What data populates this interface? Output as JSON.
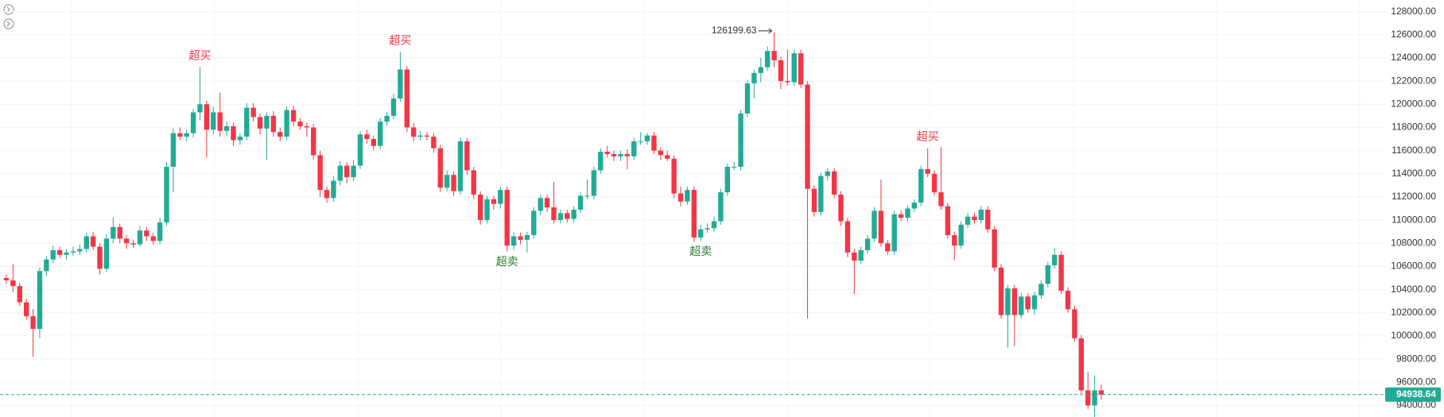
{
  "chart_data": {
    "type": "candlestick",
    "up_color": "#22ab94",
    "down_color": "#f23645",
    "ylim": [
      93000,
      129000
    ],
    "yticks": [
      {
        "value": 94000,
        "label": "94000.00"
      },
      {
        "value": 96000,
        "label": "96000.00"
      },
      {
        "value": 98000,
        "label": "98000.00"
      },
      {
        "value": 100000,
        "label": "100000.00"
      },
      {
        "value": 102000,
        "label": "102000.00"
      },
      {
        "value": 104000,
        "label": "104000.00"
      },
      {
        "value": 106000,
        "label": "106000.00"
      },
      {
        "value": 108000,
        "label": "108000.00"
      },
      {
        "value": 110000,
        "label": "110000.00"
      },
      {
        "value": 112000,
        "label": "112000.00"
      },
      {
        "value": 114000,
        "label": "114000.00"
      },
      {
        "value": 116000,
        "label": "116000.00"
      },
      {
        "value": 118000,
        "label": "118000.00"
      },
      {
        "value": 120000,
        "label": "120000.00"
      },
      {
        "value": 122000,
        "label": "122000.00"
      },
      {
        "value": 124000,
        "label": "124000.00"
      },
      {
        "value": 126000,
        "label": "126000.00"
      },
      {
        "value": 128000,
        "label": "128000.00"
      }
    ],
    "grid": true,
    "annotations": [
      {
        "text": "超买",
        "candle": 29,
        "position": "above",
        "color": "#f23645"
      },
      {
        "text": "超买",
        "candle": 59,
        "position": "above",
        "color": "#f23645"
      },
      {
        "text": "超买",
        "candle": 138,
        "position": "above",
        "color": "#f23645"
      },
      {
        "text": "超卖",
        "candle": 75,
        "position": "below",
        "color": "#2e7d32"
      },
      {
        "text": "超卖",
        "candle": 104,
        "position": "below",
        "color": "#2e7d32"
      }
    ],
    "candles": [
      [
        105000,
        105300,
        104500,
        104800
      ],
      [
        104800,
        106200,
        103800,
        104300
      ],
      [
        104300,
        104600,
        102600,
        102900
      ],
      [
        102900,
        103200,
        101400,
        101700
      ],
      [
        101700,
        102300,
        98200,
        100600
      ],
      [
        100600,
        105900,
        99800,
        105600
      ],
      [
        105600,
        106900,
        105200,
        106600
      ],
      [
        106600,
        107800,
        106300,
        107400
      ],
      [
        107400,
        107700,
        106700,
        107000
      ],
      [
        107000,
        107500,
        106600,
        107200
      ],
      [
        107200,
        107700,
        106900,
        107300
      ],
      [
        107300,
        107900,
        107000,
        107500
      ],
      [
        107500,
        108900,
        107200,
        108600
      ],
      [
        108600,
        109000,
        107400,
        107700
      ],
      [
        107700,
        108000,
        105300,
        105800
      ],
      [
        105800,
        108800,
        105500,
        108400
      ],
      [
        108400,
        110200,
        108000,
        109400
      ],
      [
        109400,
        109700,
        108000,
        108400
      ],
      [
        108400,
        108700,
        107500,
        108000
      ],
      [
        108000,
        108300,
        107600,
        107900
      ],
      [
        107900,
        109500,
        107700,
        109100
      ],
      [
        109100,
        109400,
        108200,
        108600
      ],
      [
        108600,
        108900,
        107900,
        108200
      ],
      [
        108200,
        110200,
        107900,
        109800
      ],
      [
        109800,
        115000,
        109500,
        114600
      ],
      [
        114600,
        117900,
        112400,
        117500
      ],
      [
        117500,
        118000,
        116900,
        117200
      ],
      [
        117200,
        117800,
        116800,
        117500
      ],
      [
        117500,
        119600,
        117100,
        119300
      ],
      [
        119300,
        123200,
        118600,
        120000
      ],
      [
        120000,
        120300,
        115400,
        117800
      ],
      [
        117800,
        119800,
        117400,
        119300
      ],
      [
        119300,
        121000,
        117200,
        117700
      ],
      [
        117700,
        118500,
        117300,
        118100
      ],
      [
        118100,
        118400,
        116400,
        116900
      ],
      [
        116900,
        117500,
        116500,
        117200
      ],
      [
        117200,
        120100,
        116900,
        119700
      ],
      [
        119700,
        120100,
        118500,
        118900
      ],
      [
        118900,
        119200,
        117400,
        117900
      ],
      [
        117900,
        119300,
        115200,
        119000
      ],
      [
        119000,
        119400,
        117200,
        117600
      ],
      [
        117600,
        118000,
        116800,
        117200
      ],
      [
        117200,
        119800,
        116900,
        119500
      ],
      [
        119500,
        119900,
        118100,
        118500
      ],
      [
        118500,
        118800,
        117800,
        118100
      ],
      [
        118100,
        118400,
        117200,
        118000
      ],
      [
        118000,
        118300,
        115200,
        115600
      ],
      [
        115600,
        116000,
        112000,
        112600
      ],
      [
        112600,
        112900,
        111500,
        111900
      ],
      [
        111900,
        113800,
        111600,
        113400
      ],
      [
        113400,
        115100,
        113000,
        114700
      ],
      [
        114700,
        115000,
        113200,
        113700
      ],
      [
        113700,
        115200,
        113400,
        114700
      ],
      [
        114700,
        117700,
        114400,
        117400
      ],
      [
        117400,
        117800,
        116600,
        117000
      ],
      [
        117000,
        117300,
        116000,
        116400
      ],
      [
        116400,
        118800,
        116100,
        118500
      ],
      [
        118500,
        119300,
        118100,
        119000
      ],
      [
        119000,
        120900,
        118700,
        120500
      ],
      [
        120500,
        124500,
        120200,
        123000
      ],
      [
        123000,
        123300,
        117600,
        118000
      ],
      [
        118000,
        118400,
        116800,
        117200
      ],
      [
        117200,
        117700,
        116900,
        117300
      ],
      [
        117300,
        117600,
        116900,
        117200
      ],
      [
        117200,
        117500,
        115800,
        116200
      ],
      [
        116200,
        116500,
        112400,
        112800
      ],
      [
        112800,
        114300,
        112500,
        113900
      ],
      [
        113900,
        114200,
        112100,
        112500
      ],
      [
        112500,
        117100,
        112200,
        116800
      ],
      [
        116800,
        117100,
        113900,
        114300
      ],
      [
        114300,
        114600,
        111800,
        112200
      ],
      [
        112200,
        112500,
        109600,
        110000
      ],
      [
        110000,
        112100,
        109700,
        111800
      ],
      [
        111800,
        112100,
        110900,
        111400
      ],
      [
        111400,
        112900,
        111000,
        112600
      ],
      [
        112600,
        112900,
        107300,
        107800
      ],
      [
        107800,
        108900,
        107400,
        108600
      ],
      [
        108600,
        108900,
        107900,
        108300
      ],
      [
        108300,
        109000,
        107200,
        108700
      ],
      [
        108700,
        111100,
        108400,
        110800
      ],
      [
        110800,
        112200,
        110400,
        111900
      ],
      [
        111900,
        112200,
        110700,
        111100
      ],
      [
        111100,
        113300,
        109700,
        110000
      ],
      [
        110000,
        110900,
        109700,
        110600
      ],
      [
        110600,
        110900,
        109800,
        110100
      ],
      [
        110100,
        111200,
        109800,
        110900
      ],
      [
        110900,
        112400,
        110600,
        112100
      ],
      [
        112100,
        113500,
        111800,
        112100
      ],
      [
        112100,
        114600,
        111800,
        114300
      ],
      [
        114300,
        116200,
        114000,
        115900
      ],
      [
        115900,
        116400,
        115400,
        115700
      ],
      [
        115700,
        116000,
        115100,
        115500
      ],
      [
        115500,
        116000,
        115100,
        115700
      ],
      [
        115700,
        116100,
        114400,
        115500
      ],
      [
        115500,
        117100,
        115200,
        116800
      ],
      [
        116800,
        117600,
        116500,
        116800
      ],
      [
        116800,
        117500,
        116500,
        117300
      ],
      [
        117300,
        117600,
        115700,
        116000
      ],
      [
        116000,
        116300,
        115200,
        115600
      ],
      [
        115600,
        116000,
        115100,
        115300
      ],
      [
        115300,
        115600,
        111900,
        112300
      ],
      [
        112300,
        112900,
        111200,
        111600
      ],
      [
        111600,
        112900,
        111300,
        112600
      ],
      [
        112600,
        112900,
        108100,
        108500
      ],
      [
        108500,
        109600,
        108200,
        109200
      ],
      [
        109200,
        109700,
        108900,
        109300
      ],
      [
        109300,
        110300,
        109000,
        109900
      ],
      [
        109900,
        112700,
        109600,
        112400
      ],
      [
        112400,
        114900,
        112100,
        114600
      ],
      [
        114600,
        115000,
        114300,
        114600
      ],
      [
        114600,
        119500,
        114300,
        119200
      ],
      [
        119200,
        122100,
        118900,
        121800
      ],
      [
        121800,
        123000,
        120500,
        122700
      ],
      [
        122700,
        124000,
        121900,
        123200
      ],
      [
        123200,
        125000,
        122900,
        124600
      ],
      [
        124600,
        126199.63,
        123200,
        123800
      ],
      [
        123800,
        124100,
        121300,
        122000
      ],
      [
        122000,
        124700,
        121600,
        121900
      ],
      [
        121900,
        124700,
        121600,
        124400
      ],
      [
        124400,
        124700,
        121400,
        121700
      ],
      [
        121700,
        122000,
        101500,
        112700
      ],
      [
        112700,
        113000,
        110300,
        110700
      ],
      [
        110700,
        114100,
        110400,
        113800
      ],
      [
        113800,
        114500,
        113400,
        114200
      ],
      [
        114200,
        114500,
        111900,
        112200
      ],
      [
        112200,
        112500,
        109500,
        109900
      ],
      [
        109900,
        110200,
        106800,
        107200
      ],
      [
        107200,
        107500,
        103600,
        106500
      ],
      [
        106500,
        107700,
        106200,
        107400
      ],
      [
        107400,
        108700,
        107100,
        108400
      ],
      [
        108400,
        111100,
        108100,
        110800
      ],
      [
        110800,
        113500,
        107700,
        108000
      ],
      [
        108000,
        108300,
        107000,
        107300
      ],
      [
        107300,
        110800,
        107000,
        110500
      ],
      [
        110500,
        110800,
        109900,
        110200
      ],
      [
        110200,
        111300,
        109900,
        111000
      ],
      [
        111000,
        111800,
        110700,
        111500
      ],
      [
        111500,
        114700,
        111200,
        114400
      ],
      [
        114400,
        116200,
        113700,
        114000
      ],
      [
        114000,
        114300,
        112100,
        112400
      ],
      [
        112400,
        116300,
        110900,
        111200
      ],
      [
        111200,
        111500,
        108400,
        108700
      ],
      [
        108700,
        109000,
        106500,
        107800
      ],
      [
        107800,
        109900,
        107500,
        109600
      ],
      [
        109600,
        110600,
        109300,
        110300
      ],
      [
        110300,
        110600,
        109700,
        110000
      ],
      [
        110000,
        111200,
        109700,
        110900
      ],
      [
        110900,
        111200,
        108900,
        109200
      ],
      [
        109200,
        109500,
        105600,
        105900
      ],
      [
        105900,
        106200,
        101500,
        101800
      ],
      [
        101800,
        104400,
        99000,
        104100
      ],
      [
        104100,
        104400,
        99100,
        101800
      ],
      [
        101800,
        103700,
        101500,
        103400
      ],
      [
        103400,
        103700,
        102000,
        102300
      ],
      [
        102300,
        103800,
        101800,
        103500
      ],
      [
        103500,
        104800,
        103200,
        104500
      ],
      [
        104500,
        106400,
        104200,
        106100
      ],
      [
        106100,
        107600,
        105800,
        107000
      ],
      [
        107000,
        107300,
        103600,
        103900
      ],
      [
        103900,
        104200,
        102000,
        102300
      ],
      [
        102300,
        102600,
        99500,
        99800
      ],
      [
        99800,
        100100,
        95000,
        95300
      ],
      [
        95300,
        96900,
        93700,
        94000
      ],
      [
        94000,
        96600,
        93005.55,
        95300
      ],
      [
        95300,
        95800,
        94500,
        94938.64
      ]
    ]
  }
}
